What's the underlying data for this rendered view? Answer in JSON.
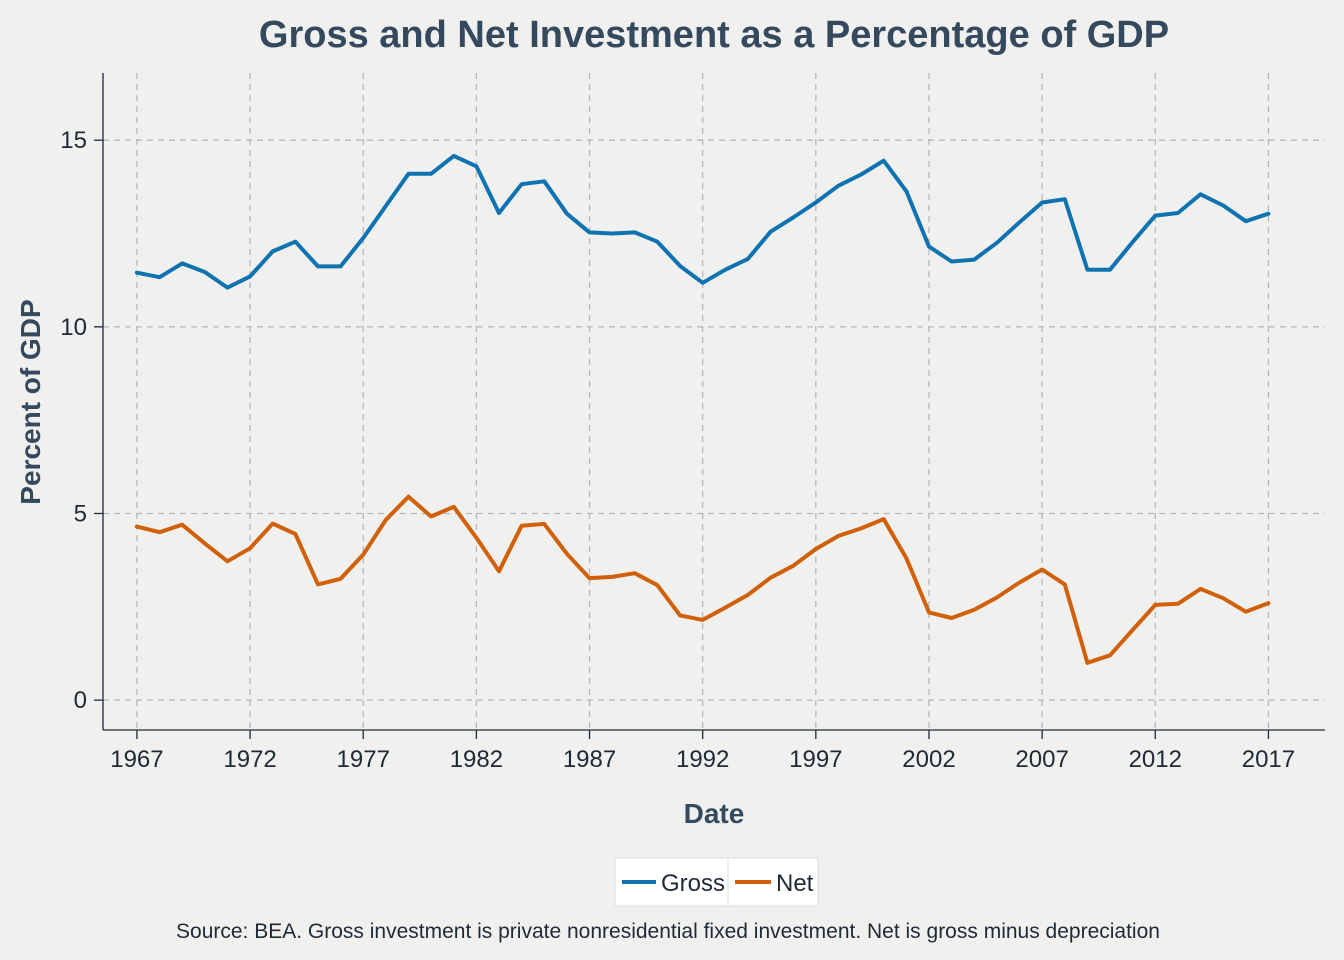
{
  "chart_data": {
    "type": "line",
    "title": "Gross and Net Investment as a Percentage of GDP",
    "xlabel": "Date",
    "ylabel": "Percent of GDP",
    "x_tick_labels": [
      "1967",
      "1972",
      "1977",
      "1982",
      "1987",
      "1992",
      "1997",
      "2002",
      "2007",
      "2012",
      "2017"
    ],
    "y_tick_labels": [
      "0",
      "5",
      "10",
      "15"
    ],
    "xlim": [
      1965.5,
      2019.5
    ],
    "ylim": [
      -0.8,
      16.8
    ],
    "x": [
      1967,
      1968,
      1969,
      1970,
      1971,
      1972,
      1973,
      1974,
      1975,
      1976,
      1977,
      1978,
      1979,
      1980,
      1981,
      1982,
      1983,
      1984,
      1985,
      1986,
      1987,
      1988,
      1989,
      1990,
      1991,
      1992,
      1993,
      1994,
      1995,
      1996,
      1997,
      1998,
      1999,
      2000,
      2001,
      2002,
      2003,
      2004,
      2005,
      2006,
      2007,
      2008,
      2009,
      2010,
      2011,
      2012,
      2013,
      2014,
      2015,
      2016,
      2017
    ],
    "series": [
      {
        "name": "Gross",
        "color": "#0f72b1",
        "values": [
          11.45,
          11.33,
          11.7,
          11.47,
          11.05,
          11.35,
          12.02,
          12.28,
          11.62,
          11.62,
          12.38,
          13.24,
          14.1,
          14.1,
          14.58,
          14.3,
          13.05,
          13.82,
          13.9,
          13.03,
          12.53,
          12.5,
          12.53,
          12.28,
          11.63,
          11.18,
          11.53,
          11.82,
          12.55,
          12.93,
          13.33,
          13.78,
          14.08,
          14.45,
          13.63,
          12.15,
          11.75,
          11.8,
          12.25,
          12.8,
          13.33,
          13.42,
          11.53,
          11.53,
          12.27,
          12.98,
          13.05,
          13.55,
          13.25,
          12.83,
          13.03
        ]
      },
      {
        "name": "Net",
        "color": "#d1600a",
        "values": [
          4.65,
          4.5,
          4.7,
          4.2,
          3.72,
          4.07,
          4.73,
          4.45,
          3.1,
          3.25,
          3.9,
          4.83,
          5.45,
          4.92,
          5.18,
          4.35,
          3.45,
          4.67,
          4.72,
          3.92,
          3.27,
          3.3,
          3.4,
          3.08,
          2.27,
          2.15,
          2.48,
          2.82,
          3.28,
          3.6,
          4.05,
          4.4,
          4.6,
          4.85,
          3.8,
          2.35,
          2.2,
          2.42,
          2.75,
          3.15,
          3.5,
          3.1,
          1.0,
          1.2,
          1.88,
          2.55,
          2.58,
          2.98,
          2.73,
          2.37,
          2.6
        ]
      }
    ],
    "legend_position": "bottom",
    "grid": true,
    "caption": "Source: BEA. Gross investment is private nonresidential fixed investment. Net is gross minus depreciation"
  }
}
